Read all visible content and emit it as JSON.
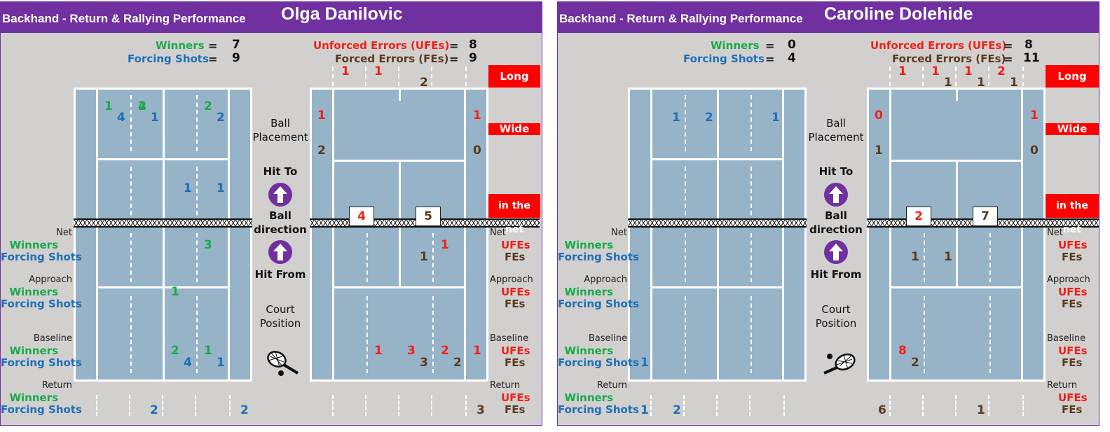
{
  "left": {
    "subtitle": "Backhand - Return & Rallying Performance",
    "player": "Olga Danilovic",
    "winners_label": "Winners",
    "winners_value": "7",
    "forcing_label": "Forcing Shots",
    "forcing_value": "9",
    "ufe_label": "Unforced Errors (UFEs)",
    "ufe_value": "8",
    "fe_label": "Forced Errors (FEs)",
    "fe_value": "9",
    "net_ufe_box": "4",
    "net_fe_box": "5",
    "left_court_nums": [
      "1",
      "4",
      "2",
      "4",
      "1",
      "2",
      "1",
      "1",
      "3",
      "1",
      "2",
      "1",
      "4",
      "1"
    ],
    "return_winner_nums": [
      "2",
      "2"
    ],
    "right_court_nums": [
      "1",
      "1",
      "2",
      "1",
      "1",
      "2",
      "0",
      "1",
      "1",
      "1",
      "3",
      "2",
      "1",
      "3",
      "2"
    ],
    "return_fe_nums": [
      "3"
    ]
  },
  "right": {
    "subtitle": "Backhand - Return & Rallying Performance",
    "player": "Caroline Dolehide",
    "winners_label": "Winners",
    "winners_value": "0",
    "forcing_label": "Forcing Shots",
    "forcing_value": "4",
    "ufe_label": "Unforced Errors (UFEs)",
    "ufe_value": "8",
    "fe_label": "Forced Errors (FEs)",
    "fe_value": "11",
    "net_ufe_box": "2",
    "net_fe_box": "7",
    "left_court_nums": [
      "1",
      "2",
      "1",
      "1"
    ],
    "return_forcing_nums": [
      "1",
      "2"
    ],
    "right_court_nums": [
      "1",
      "1",
      "1",
      "2",
      "1",
      "1",
      "1",
      "0",
      "1",
      "1",
      "0",
      "1",
      "1",
      "8",
      "2"
    ],
    "return_fe_nums": [
      "6",
      "1"
    ]
  },
  "labels": {
    "net": "Net",
    "approach": "Approach",
    "baseline": "Baseline",
    "return": "Return",
    "winners": "Winners",
    "forcing": "Forcing Shots",
    "ufes": "UFEs",
    "fes": "FEs",
    "long": "Long",
    "wide": "Wide",
    "in_net": "in the net",
    "ball_placement_1": "Ball",
    "ball_placement_2": "Placement",
    "hit_to": "Hit To",
    "ball_dir_1": "Ball",
    "ball_dir_2": "direction",
    "hit_from": "Hit From",
    "court_pos_1": "Court",
    "court_pos_2": "Position",
    "equals": "=",
    "net_pattern": "XXXXXXXXXXXXXXXXXXXXXXXXXXXXXXXXXXXXXXXXXXXXXXXXXXXXXXX"
  },
  "colors": {
    "header": "#7030a0",
    "court": "#97b3c7",
    "winners": "#1aaa4a",
    "forcing": "#1f6fb6",
    "ufe": "#f0201a",
    "fe": "#5b3a1e",
    "alert_box": "#ff0000"
  },
  "icons": [
    "up-arrow-icon",
    "tennis-racket-icon"
  ]
}
